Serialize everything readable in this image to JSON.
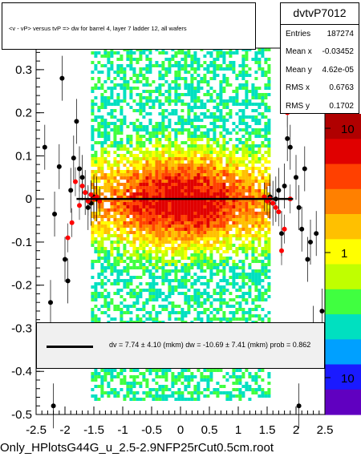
{
  "title": "<v - vP>      versus  tvP =>  dw for barrel 4, layer 7 ladder 12, all wafers",
  "stats": {
    "name": "dvtvP7012",
    "rows": [
      {
        "label": "Entries",
        "value": "187274"
      },
      {
        "label": "Mean x",
        "value": "-0.03452"
      },
      {
        "label": "Mean y",
        "value": "4.62e-05"
      },
      {
        "label": "RMS x",
        "value": "0.6763"
      },
      {
        "label": "RMS y",
        "value": "0.1702"
      }
    ]
  },
  "fit_text": "dv =    7.74 ±   4.10 (mkm) dw =  -10.69 ±   7.41 (mkm) prob = 0.862",
  "footer": "Only_HPlotsG44G_u_2.5-2.9NFP25rCut0.5cm.root",
  "chart_data": {
    "type": "heatmap",
    "xlim": [
      -2.5,
      2.5
    ],
    "ylim": [
      -0.5,
      0.35
    ],
    "x_ticks": [
      "-2.5",
      "-2",
      "-1.5",
      "-1",
      "-0.5",
      "0",
      "0.5",
      "1",
      "1.5",
      "2",
      "2.5"
    ],
    "x_tick_values": [
      -2.5,
      -2,
      -1.5,
      -1,
      -0.5,
      0,
      0.5,
      1,
      1.5,
      2,
      2.5
    ],
    "y_ticks": [
      "-0.5",
      "-0.4",
      "-0.3",
      "-0.2",
      "-0.1",
      "0",
      "0.1",
      "0.2",
      "0.3"
    ],
    "y_tick_values": [
      -0.5,
      -0.4,
      -0.3,
      -0.2,
      -0.1,
      0,
      0.1,
      0.2,
      0.3
    ],
    "z_scale": "log",
    "z_ticks": [
      "1",
      "10"
    ],
    "z_ticks_extra": [
      "10"
    ],
    "band_x_range": [
      -1.55,
      1.55
    ],
    "fit_line": {
      "x": [
        -1.8,
        1.95
      ],
      "y": [
        0.0,
        0.0
      ]
    },
    "black_points": [
      {
        "x": -2.35,
        "y": 0.12
      },
      {
        "x": -2.25,
        "y": -0.24
      },
      {
        "x": -2.18,
        "y": -0.035
      },
      {
        "x": -2.1,
        "y": 0.075
      },
      {
        "x": -2.05,
        "y": 0.28
      },
      {
        "x": -2.0,
        "y": -0.14
      },
      {
        "x": -1.95,
        "y": -0.19
      },
      {
        "x": -1.9,
        "y": 0.02
      },
      {
        "x": -1.85,
        "y": 0.095
      },
      {
        "x": -1.8,
        "y": 0.18
      },
      {
        "x": -1.75,
        "y": 0.07
      },
      {
        "x": -1.7,
        "y": 0.05
      },
      {
        "x": -1.65,
        "y": 0.015
      },
      {
        "x": -1.6,
        "y": -0.02
      },
      {
        "x": -1.55,
        "y": -0.01
      },
      {
        "x": -1.5,
        "y": 0.005
      },
      {
        "x": -1.45,
        "y": 0.0
      },
      {
        "x": 1.55,
        "y": 0.005
      },
      {
        "x": 1.6,
        "y": -0.01
      },
      {
        "x": 1.65,
        "y": 0.0
      },
      {
        "x": 1.7,
        "y": 0.02
      },
      {
        "x": 1.75,
        "y": -0.08
      },
      {
        "x": 1.8,
        "y": 0.03
      },
      {
        "x": 1.85,
        "y": 0.14
      },
      {
        "x": 1.9,
        "y": 0.12
      },
      {
        "x": 1.95,
        "y": 0.25
      },
      {
        "x": 2.0,
        "y": 0.05
      },
      {
        "x": 2.05,
        "y": -0.02
      },
      {
        "x": 2.1,
        "y": -0.07
      },
      {
        "x": 2.15,
        "y": 0.07
      },
      {
        "x": 2.2,
        "y": -0.14
      },
      {
        "x": 2.25,
        "y": -0.1
      },
      {
        "x": 2.3,
        "y": -0.3
      },
      {
        "x": 2.35,
        "y": -0.08
      },
      {
        "x": 2.45,
        "y": -0.26
      },
      {
        "x": -2.2,
        "y": -0.48
      },
      {
        "x": 2.05,
        "y": -0.48
      }
    ],
    "red_points": [
      {
        "x": -1.95,
        "y": -0.09
      },
      {
        "x": -1.88,
        "y": -0.055
      },
      {
        "x": -1.82,
        "y": 0.04
      },
      {
        "x": -1.75,
        "y": -0.015
      },
      {
        "x": -1.7,
        "y": 0.03
      },
      {
        "x": -1.65,
        "y": 0.015
      },
      {
        "x": -1.6,
        "y": -0.005
      },
      {
        "x": -1.55,
        "y": 0.01
      },
      {
        "x": -1.5,
        "y": 0.0
      },
      {
        "x": -1.45,
        "y": 0.005
      },
      {
        "x": -1.4,
        "y": -0.005
      },
      {
        "x": 1.45,
        "y": 0.005
      },
      {
        "x": 1.5,
        "y": -0.005
      },
      {
        "x": 1.55,
        "y": 0.0
      },
      {
        "x": 1.6,
        "y": -0.01
      },
      {
        "x": 1.65,
        "y": -0.02
      },
      {
        "x": 1.7,
        "y": -0.03
      },
      {
        "x": 1.75,
        "y": -0.12
      },
      {
        "x": 1.8,
        "y": -0.07
      },
      {
        "x": 1.85,
        "y": 0.2
      },
      {
        "x": 1.9,
        "y": 0.0
      }
    ]
  }
}
